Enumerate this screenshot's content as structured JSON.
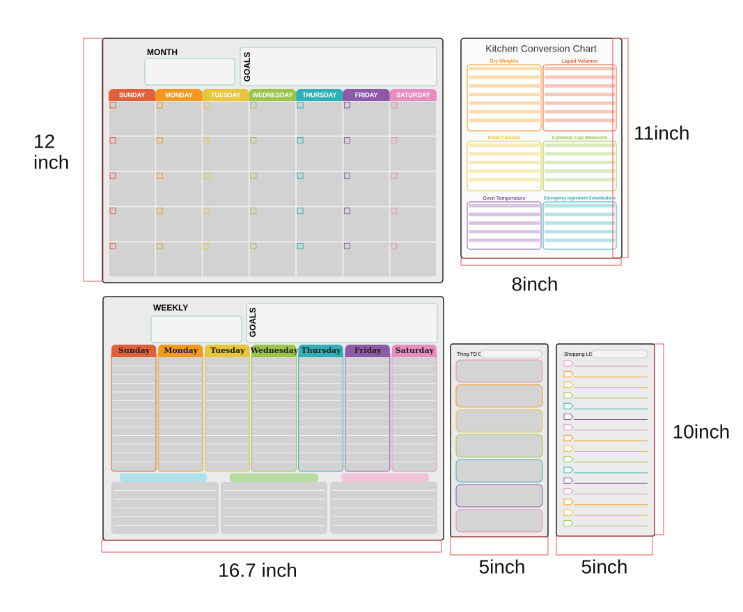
{
  "monthly": {
    "title": "MONTH",
    "goals": "GOALS",
    "days": [
      "SUNDAY",
      "MONDAY",
      "TUESDAY",
      "WEDNESDAY",
      "THURSDAY",
      "FRIDAY",
      "SATURDAY"
    ]
  },
  "weekly": {
    "title": "WEEKLY",
    "goals": "GOALS",
    "days": [
      "Sunday",
      "Monday",
      "Tuesday",
      "Wednesday",
      "Thursday",
      "Friday",
      "Saturday"
    ]
  },
  "day_colors": [
    "#e0603a",
    "#f39a1e",
    "#e8c53a",
    "#9cc44a",
    "#2fb0b8",
    "#8e5aa8",
    "#e98cbf"
  ],
  "kitchen_chart": {
    "title": "Kitchen Conversion Chart",
    "sections": [
      {
        "name": "Dry Weights",
        "color": "#f39a1e"
      },
      {
        "name": "Liquid Volumes",
        "color": "#e0603a"
      },
      {
        "name": "Food Calories",
        "color": "#e8c53a"
      },
      {
        "name": "Common Cup Measures",
        "color": "#9cc44a"
      },
      {
        "name": "Oven Temperature",
        "color": "#8e5aa8"
      },
      {
        "name": "Emergency Ingredient Substitutions",
        "color": "#2fb0b8"
      }
    ]
  },
  "todo": {
    "title": "Thing TO DO"
  },
  "shopping": {
    "title": "Shopping LIST"
  },
  "dimensions": {
    "monthly_height": [
      "12",
      "inch"
    ],
    "kitchen_height": "11inch",
    "kitchen_width": "8inch",
    "weekly_width": "16.7 inch",
    "todo_width": "5inch",
    "shopping_width": "5inch",
    "shopping_height": "10inch"
  }
}
